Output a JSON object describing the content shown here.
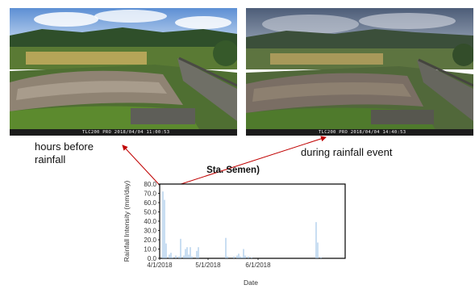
{
  "photos": [
    {
      "timestamp": "TLC200 PRO 2018/04/04 11:00:53"
    },
    {
      "timestamp": "TLC200 PRO 2018/04/04 14:40:53"
    }
  ],
  "captions": {
    "left": "hours before rainfall",
    "right": "during rainfall event"
  },
  "colors": {
    "bar": "#9dc3e6",
    "arrow": "#c00000",
    "frame": "#000000"
  },
  "chart_data": {
    "type": "bar",
    "title": "Sta. Semen)",
    "xlabel": "Date",
    "ylabel": "Rainfall Intensity (mm/day)",
    "ylim": [
      0,
      80
    ],
    "yticks": [
      "0.0",
      "10.0",
      "20.0",
      "30.0",
      "40.0",
      "50.0",
      "60.0",
      "70.0",
      "80.0"
    ],
    "xlim": [
      "2018-04-01",
      "2018-07-25"
    ],
    "xticks": [
      {
        "date": "2018-04-01",
        "label": "4/1/2018"
      },
      {
        "date": "2018-05-01",
        "label": "5/1/2018"
      },
      {
        "date": "2018-06-01",
        "label": "6/1/2018"
      }
    ],
    "grid": false,
    "x": [
      "2018-04-03",
      "2018-04-04",
      "2018-04-05",
      "2018-04-07",
      "2018-04-08",
      "2018-04-09",
      "2018-04-11",
      "2018-04-13",
      "2018-04-14",
      "2018-04-16",
      "2018-04-17",
      "2018-04-18",
      "2018-04-19",
      "2018-04-20",
      "2018-04-21",
      "2018-04-24",
      "2018-04-25",
      "2018-05-12",
      "2018-05-13",
      "2018-05-17",
      "2018-05-19",
      "2018-05-20",
      "2018-05-21",
      "2018-05-22",
      "2018-05-23",
      "2018-05-24",
      "2018-05-26",
      "2018-05-28",
      "2018-07-07",
      "2018-07-08",
      "2018-07-10"
    ],
    "values": [
      72,
      63,
      16,
      4,
      6,
      1,
      3,
      2,
      21,
      3,
      10,
      12,
      4,
      12,
      2,
      8,
      12,
      22,
      2,
      2,
      3,
      5,
      2,
      1,
      10,
      3,
      2,
      1,
      39,
      17,
      1
    ]
  }
}
